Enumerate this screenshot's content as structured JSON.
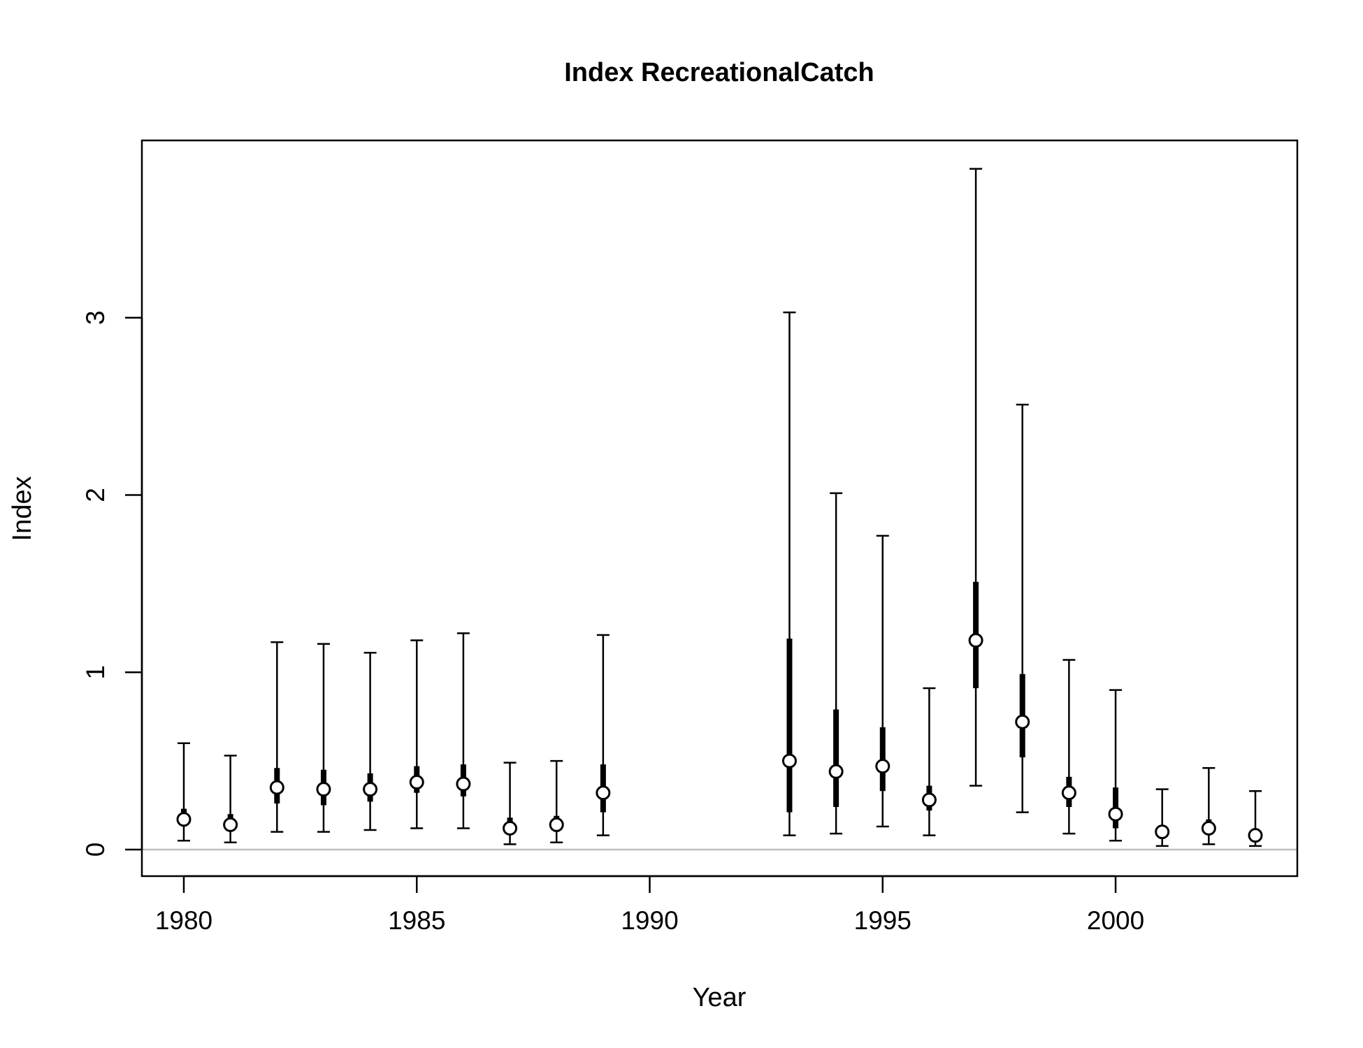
{
  "chart_data": {
    "type": "scatter",
    "title": "Index RecreationalCatch",
    "xlabel": "Year",
    "ylabel": "Index",
    "xlim": [
      1979.1,
      2003.9
    ],
    "ylim": [
      -0.15,
      4.0
    ],
    "x_ticks": [
      1980,
      1985,
      1990,
      1995,
      2000
    ],
    "y_ticks": [
      0,
      1,
      2,
      3
    ],
    "reference_line": {
      "y": 0,
      "color": "#bebebe"
    },
    "grid": false,
    "legend": "none",
    "series": [
      {
        "points": [
          {
            "year": 1980,
            "value": 0.17,
            "lower": 0.05,
            "upper": 0.6,
            "inner_lower": 0.13,
            "inner_upper": 0.23
          },
          {
            "year": 1981,
            "value": 0.14,
            "lower": 0.04,
            "upper": 0.53,
            "inner_lower": 0.11,
            "inner_upper": 0.2
          },
          {
            "year": 1982,
            "value": 0.35,
            "lower": 0.1,
            "upper": 1.17,
            "inner_lower": 0.26,
            "inner_upper": 0.46
          },
          {
            "year": 1983,
            "value": 0.34,
            "lower": 0.1,
            "upper": 1.16,
            "inner_lower": 0.25,
            "inner_upper": 0.45
          },
          {
            "year": 1984,
            "value": 0.34,
            "lower": 0.11,
            "upper": 1.11,
            "inner_lower": 0.27,
            "inner_upper": 0.43
          },
          {
            "year": 1985,
            "value": 0.38,
            "lower": 0.12,
            "upper": 1.18,
            "inner_lower": 0.32,
            "inner_upper": 0.47
          },
          {
            "year": 1986,
            "value": 0.37,
            "lower": 0.12,
            "upper": 1.22,
            "inner_lower": 0.3,
            "inner_upper": 0.48
          },
          {
            "year": 1987,
            "value": 0.12,
            "lower": 0.03,
            "upper": 0.49,
            "inner_lower": 0.09,
            "inner_upper": 0.18
          },
          {
            "year": 1988,
            "value": 0.14,
            "lower": 0.04,
            "upper": 0.5,
            "inner_lower": 0.1,
            "inner_upper": 0.19
          },
          {
            "year": 1989,
            "value": 0.32,
            "lower": 0.08,
            "upper": 1.21,
            "inner_lower": 0.21,
            "inner_upper": 0.48
          },
          {
            "year": 1993,
            "value": 0.5,
            "lower": 0.08,
            "upper": 3.03,
            "inner_lower": 0.21,
            "inner_upper": 1.19
          },
          {
            "year": 1994,
            "value": 0.44,
            "lower": 0.09,
            "upper": 2.01,
            "inner_lower": 0.24,
            "inner_upper": 0.79
          },
          {
            "year": 1995,
            "value": 0.47,
            "lower": 0.13,
            "upper": 1.77,
            "inner_lower": 0.33,
            "inner_upper": 0.69
          },
          {
            "year": 1996,
            "value": 0.28,
            "lower": 0.08,
            "upper": 0.91,
            "inner_lower": 0.22,
            "inner_upper": 0.36
          },
          {
            "year": 1997,
            "value": 1.18,
            "lower": 0.36,
            "upper": 3.84,
            "inner_lower": 0.91,
            "inner_upper": 1.51
          },
          {
            "year": 1998,
            "value": 0.72,
            "lower": 0.21,
            "upper": 2.51,
            "inner_lower": 0.52,
            "inner_upper": 0.99
          },
          {
            "year": 1999,
            "value": 0.32,
            "lower": 0.09,
            "upper": 1.07,
            "inner_lower": 0.24,
            "inner_upper": 0.41
          },
          {
            "year": 2000,
            "value": 0.2,
            "lower": 0.05,
            "upper": 0.9,
            "inner_lower": 0.12,
            "inner_upper": 0.35
          },
          {
            "year": 2001,
            "value": 0.1,
            "lower": 0.02,
            "upper": 0.34,
            "inner_lower": 0.06,
            "inner_upper": 0.13
          },
          {
            "year": 2002,
            "value": 0.12,
            "lower": 0.03,
            "upper": 0.46,
            "inner_lower": 0.09,
            "inner_upper": 0.17
          },
          {
            "year": 2003,
            "value": 0.08,
            "lower": 0.02,
            "upper": 0.33,
            "inner_lower": 0.06,
            "inner_upper": 0.12
          }
        ]
      }
    ]
  }
}
